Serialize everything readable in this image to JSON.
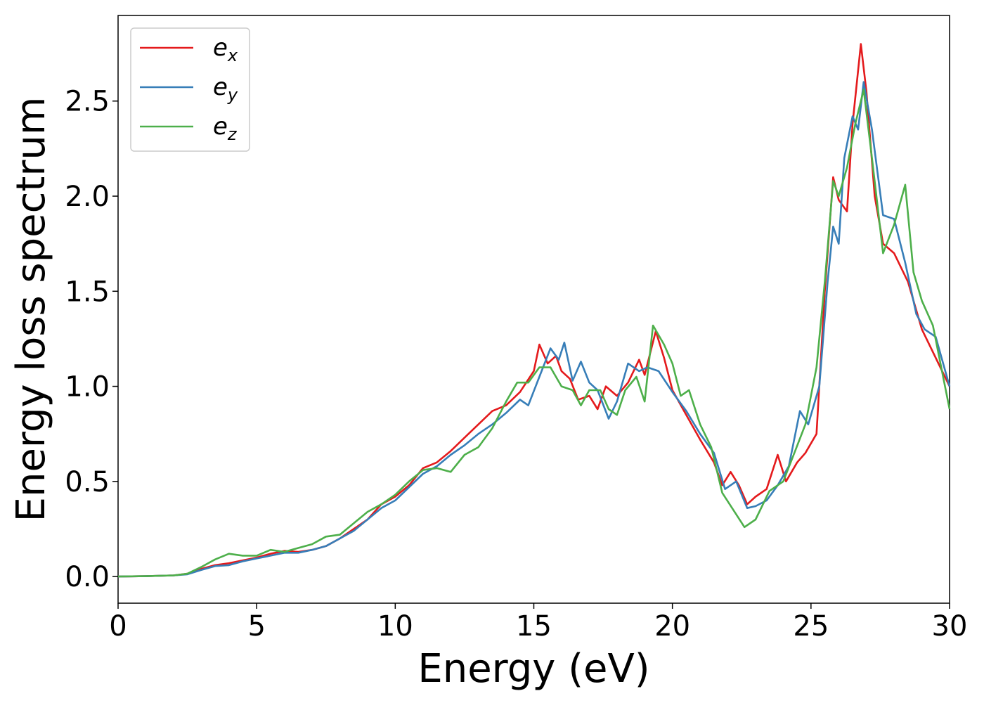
{
  "chart_data": {
    "type": "line",
    "title": "",
    "xlabel": "Energy (eV)",
    "ylabel": "Energy loss spectrum",
    "xlim": [
      0,
      30
    ],
    "ylim": [
      -0.14,
      2.95
    ],
    "xticks": [
      0,
      5,
      10,
      15,
      20,
      25,
      30
    ],
    "xtick_labels": [
      "0",
      "5",
      "10",
      "15",
      "20",
      "25",
      "30"
    ],
    "yticks": [
      0.0,
      0.5,
      1.0,
      1.5,
      2.0,
      2.5
    ],
    "ytick_labels": [
      "0.0",
      "0.5",
      "1.0",
      "1.5",
      "2.0",
      "2.5"
    ],
    "grid": false,
    "legend_position": "top-left",
    "series": [
      {
        "name": "e",
        "subscript": "x",
        "color": "#e41a1c",
        "points": [
          [
            0,
            0
          ],
          [
            1,
            0.002
          ],
          [
            2,
            0.006
          ],
          [
            2.5,
            0.015
          ],
          [
            3,
            0.04
          ],
          [
            3.5,
            0.06
          ],
          [
            4,
            0.07
          ],
          [
            4.5,
            0.085
          ],
          [
            5,
            0.1
          ],
          [
            5.5,
            0.12
          ],
          [
            6,
            0.135
          ],
          [
            6.5,
            0.13
          ],
          [
            7,
            0.14
          ],
          [
            7.5,
            0.16
          ],
          [
            8,
            0.2
          ],
          [
            8.5,
            0.25
          ],
          [
            9,
            0.3
          ],
          [
            9.5,
            0.38
          ],
          [
            10,
            0.42
          ],
          [
            10.5,
            0.48
          ],
          [
            11,
            0.57
          ],
          [
            11.5,
            0.6
          ],
          [
            12,
            0.66
          ],
          [
            12.5,
            0.73
          ],
          [
            13,
            0.8
          ],
          [
            13.5,
            0.87
          ],
          [
            14,
            0.9
          ],
          [
            14.5,
            0.97
          ],
          [
            15,
            1.08
          ],
          [
            15.2,
            1.22
          ],
          [
            15.5,
            1.12
          ],
          [
            15.8,
            1.16
          ],
          [
            16,
            1.08
          ],
          [
            16.3,
            1.04
          ],
          [
            16.6,
            0.93
          ],
          [
            17,
            0.95
          ],
          [
            17.3,
            0.88
          ],
          [
            17.6,
            1.0
          ],
          [
            18,
            0.95
          ],
          [
            18.4,
            1.02
          ],
          [
            18.8,
            1.14
          ],
          [
            19,
            1.06
          ],
          [
            19.4,
            1.29
          ],
          [
            19.7,
            1.15
          ],
          [
            20,
            0.98
          ],
          [
            20.5,
            0.85
          ],
          [
            21,
            0.72
          ],
          [
            21.5,
            0.6
          ],
          [
            21.8,
            0.48
          ],
          [
            22.1,
            0.55
          ],
          [
            22.4,
            0.48
          ],
          [
            22.7,
            0.38
          ],
          [
            23,
            0.42
          ],
          [
            23.4,
            0.46
          ],
          [
            23.8,
            0.64
          ],
          [
            24.1,
            0.5
          ],
          [
            24.5,
            0.6
          ],
          [
            24.8,
            0.65
          ],
          [
            25.2,
            0.75
          ],
          [
            25.5,
            1.5
          ],
          [
            25.8,
            2.1
          ],
          [
            26,
            1.98
          ],
          [
            26.3,
            1.92
          ],
          [
            26.5,
            2.38
          ],
          [
            26.8,
            2.8
          ],
          [
            27,
            2.55
          ],
          [
            27.3,
            2.0
          ],
          [
            27.6,
            1.75
          ],
          [
            28,
            1.7
          ],
          [
            28.5,
            1.55
          ],
          [
            29,
            1.3
          ],
          [
            29.5,
            1.15
          ],
          [
            30,
            1.0
          ]
        ]
      },
      {
        "name": "e",
        "subscript": "y",
        "color": "#377eb8",
        "points": [
          [
            0,
            0
          ],
          [
            1,
            0.002
          ],
          [
            2,
            0.006
          ],
          [
            2.5,
            0.012
          ],
          [
            3,
            0.035
          ],
          [
            3.5,
            0.055
          ],
          [
            4,
            0.06
          ],
          [
            4.5,
            0.08
          ],
          [
            5,
            0.095
          ],
          [
            5.5,
            0.11
          ],
          [
            6,
            0.125
          ],
          [
            6.5,
            0.125
          ],
          [
            7,
            0.14
          ],
          [
            7.5,
            0.16
          ],
          [
            8,
            0.2
          ],
          [
            8.5,
            0.24
          ],
          [
            9,
            0.3
          ],
          [
            9.5,
            0.36
          ],
          [
            10,
            0.4
          ],
          [
            10.5,
            0.47
          ],
          [
            11,
            0.54
          ],
          [
            11.5,
            0.58
          ],
          [
            12,
            0.64
          ],
          [
            12.5,
            0.69
          ],
          [
            13,
            0.75
          ],
          [
            13.5,
            0.8
          ],
          [
            14,
            0.86
          ],
          [
            14.5,
            0.93
          ],
          [
            14.8,
            0.9
          ],
          [
            15.2,
            1.05
          ],
          [
            15.6,
            1.2
          ],
          [
            15.9,
            1.14
          ],
          [
            16.1,
            1.23
          ],
          [
            16.4,
            1.03
          ],
          [
            16.7,
            1.13
          ],
          [
            17,
            1.02
          ],
          [
            17.3,
            0.98
          ],
          [
            17.7,
            0.83
          ],
          [
            18,
            0.92
          ],
          [
            18.4,
            1.12
          ],
          [
            18.8,
            1.08
          ],
          [
            19.1,
            1.1
          ],
          [
            19.5,
            1.08
          ],
          [
            20,
            0.97
          ],
          [
            20.5,
            0.87
          ],
          [
            21,
            0.75
          ],
          [
            21.5,
            0.65
          ],
          [
            21.9,
            0.46
          ],
          [
            22.3,
            0.5
          ],
          [
            22.7,
            0.36
          ],
          [
            23,
            0.37
          ],
          [
            23.4,
            0.4
          ],
          [
            23.8,
            0.48
          ],
          [
            24.2,
            0.58
          ],
          [
            24.6,
            0.87
          ],
          [
            24.9,
            0.8
          ],
          [
            25.3,
            1.0
          ],
          [
            25.6,
            1.55
          ],
          [
            25.8,
            1.84
          ],
          [
            26,
            1.75
          ],
          [
            26.2,
            2.2
          ],
          [
            26.5,
            2.42
          ],
          [
            26.7,
            2.35
          ],
          [
            26.9,
            2.6
          ],
          [
            27.2,
            2.35
          ],
          [
            27.6,
            1.9
          ],
          [
            28,
            1.88
          ],
          [
            28.4,
            1.65
          ],
          [
            28.8,
            1.38
          ],
          [
            29.1,
            1.3
          ],
          [
            29.5,
            1.26
          ],
          [
            30,
            1.0
          ]
        ]
      },
      {
        "name": "e",
        "subscript": "z",
        "color": "#4daf4a",
        "points": [
          [
            0,
            0
          ],
          [
            1,
            0.002
          ],
          [
            2,
            0.006
          ],
          [
            2.5,
            0.015
          ],
          [
            3,
            0.05
          ],
          [
            3.5,
            0.09
          ],
          [
            4,
            0.12
          ],
          [
            4.5,
            0.11
          ],
          [
            5,
            0.11
          ],
          [
            5.5,
            0.14
          ],
          [
            6,
            0.13
          ],
          [
            6.5,
            0.15
          ],
          [
            7,
            0.17
          ],
          [
            7.5,
            0.21
          ],
          [
            8,
            0.22
          ],
          [
            8.5,
            0.28
          ],
          [
            9,
            0.34
          ],
          [
            9.5,
            0.38
          ],
          [
            10,
            0.43
          ],
          [
            10.5,
            0.5
          ],
          [
            11,
            0.56
          ],
          [
            11.5,
            0.57
          ],
          [
            12,
            0.55
          ],
          [
            12.5,
            0.64
          ],
          [
            13,
            0.68
          ],
          [
            13.5,
            0.78
          ],
          [
            14,
            0.92
          ],
          [
            14.4,
            1.02
          ],
          [
            14.8,
            1.02
          ],
          [
            15.2,
            1.1
          ],
          [
            15.6,
            1.1
          ],
          [
            16,
            1.0
          ],
          [
            16.4,
            0.98
          ],
          [
            16.7,
            0.9
          ],
          [
            17,
            0.98
          ],
          [
            17.4,
            0.98
          ],
          [
            17.7,
            0.88
          ],
          [
            18,
            0.85
          ],
          [
            18.3,
            0.98
          ],
          [
            18.7,
            1.05
          ],
          [
            19,
            0.92
          ],
          [
            19.3,
            1.32
          ],
          [
            19.7,
            1.22
          ],
          [
            20,
            1.12
          ],
          [
            20.3,
            0.95
          ],
          [
            20.6,
            0.98
          ],
          [
            21,
            0.8
          ],
          [
            21.4,
            0.68
          ],
          [
            21.8,
            0.44
          ],
          [
            22.2,
            0.35
          ],
          [
            22.6,
            0.26
          ],
          [
            23,
            0.3
          ],
          [
            23.5,
            0.45
          ],
          [
            24,
            0.5
          ],
          [
            24.4,
            0.65
          ],
          [
            24.8,
            0.8
          ],
          [
            25.2,
            1.1
          ],
          [
            25.5,
            1.55
          ],
          [
            25.8,
            2.08
          ],
          [
            26,
            2.0
          ],
          [
            26.3,
            2.15
          ],
          [
            26.6,
            2.38
          ],
          [
            26.9,
            2.56
          ],
          [
            27.2,
            2.2
          ],
          [
            27.6,
            1.7
          ],
          [
            28,
            1.85
          ],
          [
            28.4,
            2.06
          ],
          [
            28.7,
            1.6
          ],
          [
            29,
            1.45
          ],
          [
            29.4,
            1.32
          ],
          [
            30,
            0.88
          ]
        ]
      }
    ]
  }
}
